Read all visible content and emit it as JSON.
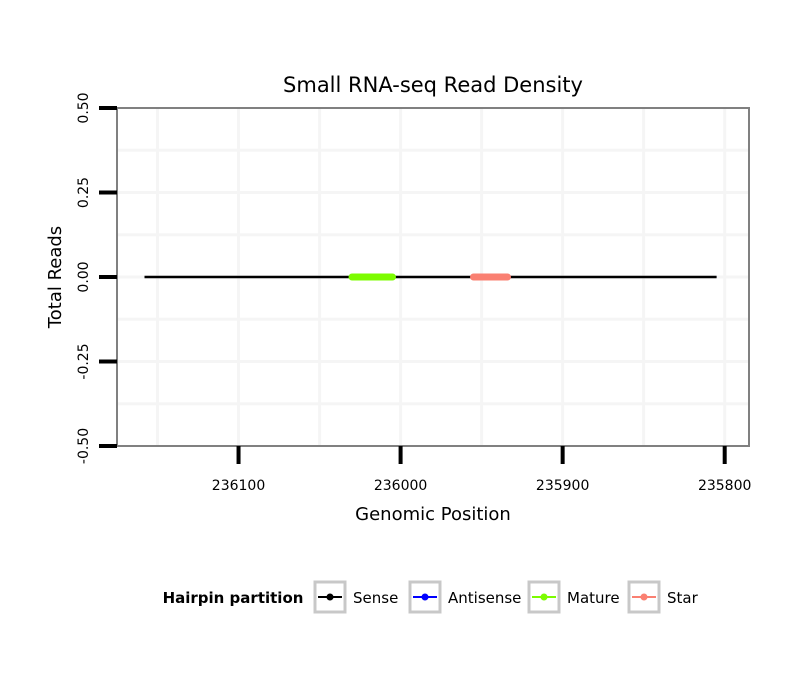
{
  "chart_data": {
    "type": "line",
    "title": "Small RNA-seq Read Density",
    "xlabel": "Genomic Position",
    "ylabel": "Total Reads",
    "x_reversed": true,
    "xlim": [
      236175,
      235785
    ],
    "ylim": [
      -0.5,
      0.5
    ],
    "x_ticks": [
      236100,
      236000,
      235900,
      235800
    ],
    "x_tick_labels": [
      "236100",
      "236000",
      "235900",
      "235800"
    ],
    "y_ticks": [
      -0.5,
      -0.25,
      0,
      0.25,
      0.5
    ],
    "y_tick_labels": [
      "-0.50",
      "-0.25",
      "0.00",
      "0.25",
      "0.50"
    ],
    "grid": true,
    "series": [
      {
        "name": "Sense",
        "color": "#000000",
        "x": [
          236158,
          235805
        ],
        "y": [
          0,
          0
        ]
      },
      {
        "name": "Antisense",
        "color": "#0000ff",
        "x": [
          236158,
          235805
        ],
        "y": [
          0,
          0
        ]
      },
      {
        "name": "Mature",
        "color": "#7cfc00",
        "x": [
          236030,
          236005
        ],
        "y": [
          0,
          0
        ]
      },
      {
        "name": "Star",
        "color": "#fa8072",
        "x": [
          235955,
          235934
        ],
        "y": [
          0,
          0
        ]
      }
    ],
    "legend": {
      "title": "Hairpin partition",
      "position": "bottom",
      "items": [
        {
          "label": "Sense",
          "color": "#000000"
        },
        {
          "label": "Antisense",
          "color": "#0000ff"
        },
        {
          "label": "Mature",
          "color": "#7cfc00"
        },
        {
          "label": "Star",
          "color": "#fa8072"
        }
      ]
    }
  }
}
